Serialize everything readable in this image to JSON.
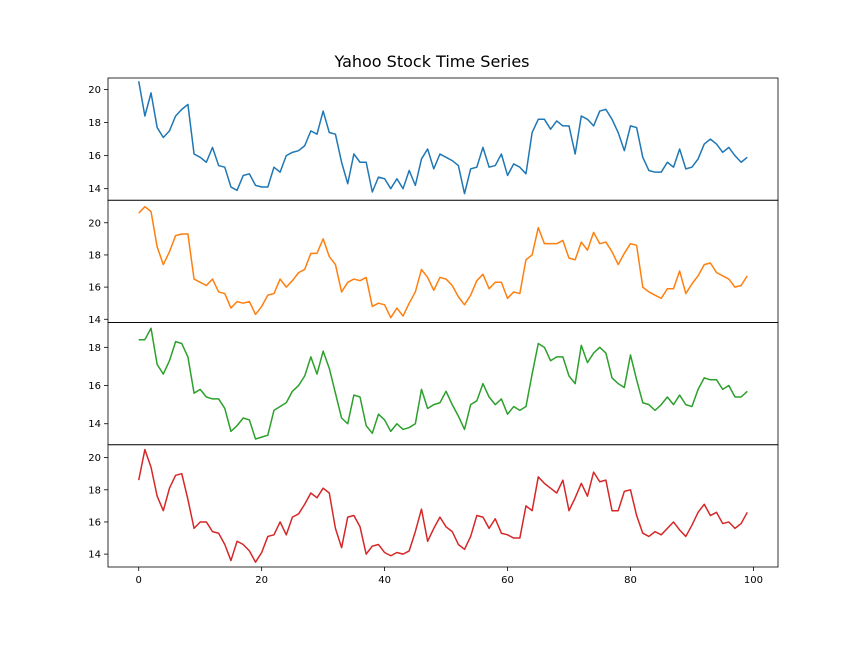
{
  "chart_data": {
    "type": "line",
    "title": "Yahoo Stock Time Series",
    "xlim": [
      -5,
      104
    ],
    "xticks": [
      0,
      20,
      40,
      60,
      80,
      100
    ],
    "grid": false,
    "series": [
      {
        "color": "#1f77b4",
        "ylim": [
          13.3,
          20.7
        ],
        "yticks": [
          14,
          16,
          18,
          20
        ],
        "values": [
          20.5,
          18.4,
          19.8,
          17.7,
          17.1,
          17.5,
          18.4,
          18.8,
          19.1,
          16.1,
          15.9,
          15.6,
          16.5,
          15.4,
          15.3,
          14.1,
          13.9,
          14.8,
          14.9,
          14.2,
          14.1,
          14.1,
          15.3,
          15.0,
          16.0,
          16.2,
          16.3,
          16.6,
          17.5,
          17.3,
          18.7,
          17.4,
          17.3,
          15.6,
          14.3,
          16.1,
          15.6,
          15.6,
          13.8,
          14.7,
          14.6,
          14.0,
          14.6,
          14.0,
          15.1,
          14.2,
          15.8,
          16.4,
          15.2,
          16.1,
          15.9,
          15.7,
          15.4,
          13.7,
          15.2,
          15.3,
          16.5,
          15.3,
          15.4,
          16.1,
          14.8,
          15.5,
          15.3,
          14.9,
          17.4,
          18.2,
          18.2,
          17.6,
          18.1,
          17.8,
          17.8,
          16.1,
          18.4,
          18.2,
          17.8,
          18.7,
          18.8,
          18.2,
          17.4,
          16.3,
          17.8,
          17.7,
          15.9,
          15.1,
          15.0,
          15.0,
          15.6,
          15.3,
          16.4,
          15.2,
          15.3,
          15.8,
          16.7,
          17.0,
          16.7,
          16.2,
          16.5,
          16.0,
          15.6,
          15.9
        ]
      },
      {
        "color": "#ff7f0e",
        "ylim": [
          13.8,
          21.4
        ],
        "yticks": [
          14,
          16,
          18,
          20
        ],
        "values": [
          20.6,
          21.0,
          20.7,
          18.5,
          17.4,
          18.2,
          19.2,
          19.3,
          19.3,
          16.5,
          16.3,
          16.1,
          16.5,
          15.7,
          15.6,
          14.7,
          15.1,
          15.0,
          15.1,
          14.3,
          14.8,
          15.5,
          15.6,
          16.5,
          16.0,
          16.4,
          16.9,
          17.1,
          18.1,
          18.1,
          19.0,
          17.9,
          17.4,
          15.7,
          16.3,
          16.5,
          16.4,
          16.6,
          14.8,
          15.0,
          14.9,
          14.1,
          14.7,
          14.2,
          15.0,
          15.7,
          17.1,
          16.6,
          15.8,
          16.6,
          16.5,
          16.1,
          15.4,
          14.9,
          15.5,
          16.4,
          16.8,
          15.9,
          16.3,
          16.3,
          15.3,
          15.7,
          15.6,
          17.7,
          18.0,
          19.7,
          18.7,
          18.7,
          18.7,
          18.9,
          17.8,
          17.7,
          18.8,
          18.3,
          19.4,
          18.7,
          18.8,
          18.2,
          17.4,
          18.1,
          18.7,
          18.6,
          16.0,
          15.7,
          15.5,
          15.3,
          15.9,
          15.9,
          17.0,
          15.6,
          16.2,
          16.7,
          17.4,
          17.5,
          16.9,
          16.7,
          16.5,
          16.0,
          16.1,
          16.7
        ]
      },
      {
        "color": "#2ca02c",
        "ylim": [
          12.9,
          19.3
        ],
        "yticks": [
          14,
          16,
          18
        ],
        "values": [
          18.4,
          18.4,
          19.0,
          17.1,
          16.6,
          17.3,
          18.3,
          18.2,
          17.5,
          15.6,
          15.8,
          15.4,
          15.3,
          15.3,
          14.8,
          13.6,
          13.9,
          14.3,
          14.2,
          13.2,
          13.3,
          13.4,
          14.7,
          14.9,
          15.1,
          15.7,
          16.0,
          16.5,
          17.5,
          16.6,
          17.8,
          16.9,
          15.6,
          14.3,
          14.0,
          15.5,
          15.4,
          13.9,
          13.5,
          14.5,
          14.2,
          13.6,
          14.0,
          13.7,
          13.8,
          14.0,
          15.8,
          14.8,
          15.0,
          15.1,
          15.7,
          15.0,
          14.4,
          13.7,
          15.0,
          15.2,
          16.1,
          15.4,
          15.0,
          15.3,
          14.5,
          14.9,
          14.7,
          14.9,
          16.6,
          18.2,
          18.0,
          17.3,
          17.5,
          17.5,
          16.5,
          16.1,
          18.1,
          17.2,
          17.7,
          18.0,
          17.7,
          16.4,
          16.1,
          15.9,
          17.6,
          16.3,
          15.1,
          15.0,
          14.7,
          15.0,
          15.4,
          15.0,
          15.5,
          15.0,
          14.9,
          15.8,
          16.4,
          16.3,
          16.3,
          15.8,
          16.0,
          15.4,
          15.4,
          15.7
        ]
      },
      {
        "color": "#d62728",
        "ylim": [
          13.2,
          20.8
        ],
        "yticks": [
          14,
          16,
          18,
          20
        ],
        "values": [
          18.6,
          20.5,
          19.4,
          17.6,
          16.7,
          18.1,
          18.9,
          19.0,
          17.4,
          15.6,
          16.0,
          16.0,
          15.4,
          15.3,
          14.6,
          13.6,
          14.8,
          14.6,
          14.2,
          13.5,
          14.1,
          15.1,
          15.2,
          16.0,
          15.2,
          16.3,
          16.5,
          17.1,
          17.8,
          17.5,
          18.1,
          17.8,
          15.6,
          14.4,
          16.3,
          16.4,
          15.7,
          14.0,
          14.5,
          14.6,
          14.1,
          13.9,
          14.1,
          14.0,
          14.2,
          15.4,
          16.8,
          14.8,
          15.6,
          16.3,
          15.7,
          15.4,
          14.6,
          14.3,
          15.1,
          16.4,
          16.3,
          15.6,
          16.2,
          15.3,
          15.2,
          15.0,
          15.0,
          17.0,
          16.7,
          18.8,
          18.4,
          18.1,
          17.8,
          18.6,
          16.7,
          17.5,
          18.4,
          17.6,
          19.1,
          18.5,
          18.6,
          16.7,
          16.7,
          17.9,
          18.0,
          16.4,
          15.3,
          15.1,
          15.4,
          15.2,
          15.6,
          16.0,
          15.5,
          15.1,
          15.8,
          16.6,
          17.1,
          16.4,
          16.6,
          15.9,
          16.0,
          15.6,
          15.9,
          16.6
        ]
      }
    ]
  }
}
